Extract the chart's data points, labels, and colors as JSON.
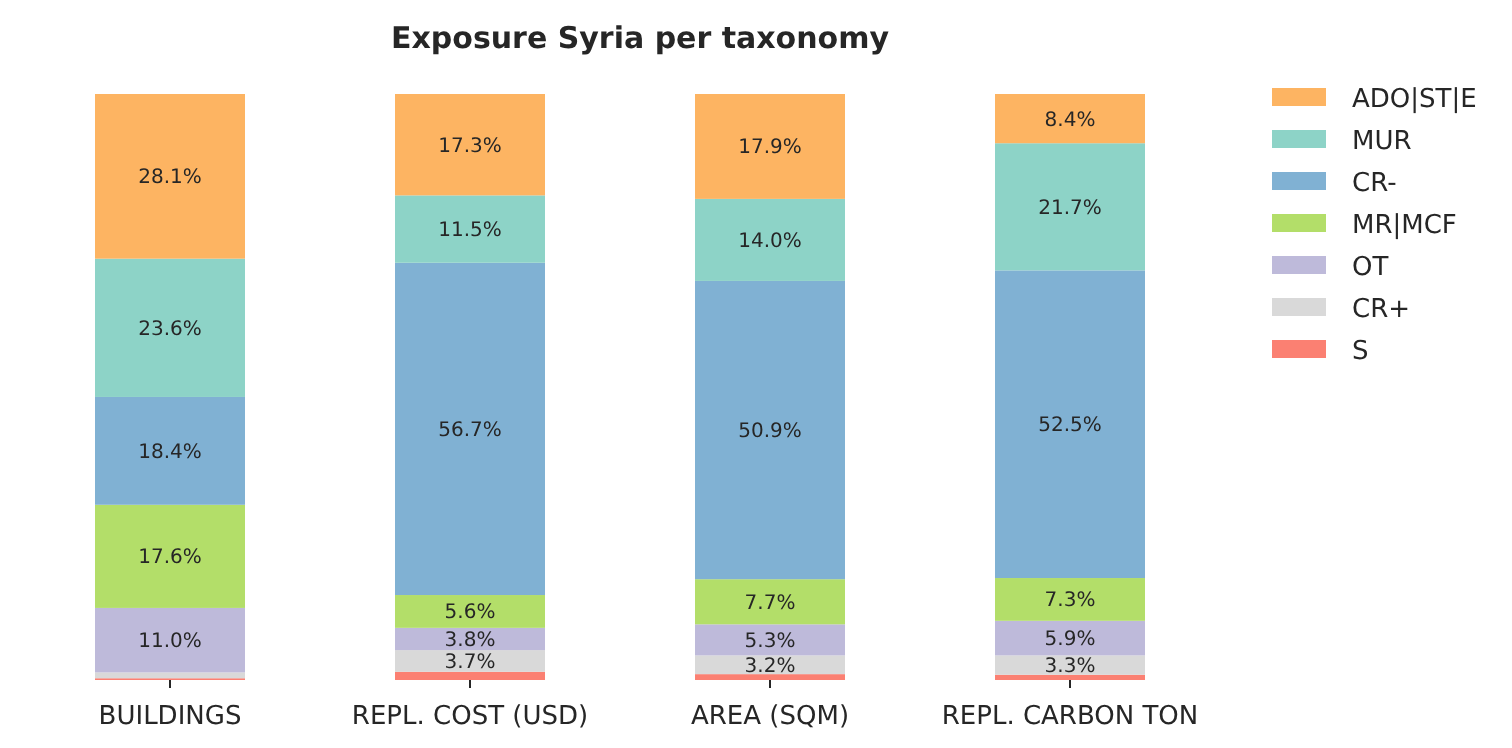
{
  "chart_data": {
    "type": "bar",
    "title": "Exposure Syria per taxonomy",
    "categories": [
      "BUILDINGS",
      "REPL. COST (USD)",
      "AREA (SQM)",
      "REPL. CARBON TON"
    ],
    "stacked": true,
    "legend": "top right",
    "series": [
      {
        "name": "S",
        "color": "#fb8072",
        "values": [
          0.3,
          1.4,
          1.0,
          0.9
        ],
        "value_labels": [
          null,
          null,
          null,
          null
        ]
      },
      {
        "name": "CR+",
        "color": "#d9d9d9",
        "values": [
          1.0,
          3.7,
          3.2,
          3.3
        ],
        "value_labels": [
          null,
          "3.7%",
          "3.2%",
          "3.3%"
        ]
      },
      {
        "name": "OT",
        "color": "#bebada",
        "values": [
          11.0,
          3.8,
          5.3,
          5.9
        ],
        "value_labels": [
          "11.0%",
          "3.8%",
          "5.3%",
          "5.9%"
        ]
      },
      {
        "name": "MR|MCF",
        "color": "#b3de69",
        "values": [
          17.6,
          5.6,
          7.7,
          7.3
        ],
        "value_labels": [
          "17.6%",
          "5.6%",
          "7.7%",
          "7.3%"
        ]
      },
      {
        "name": "CR-",
        "color": "#80b1d3",
        "values": [
          18.4,
          56.7,
          50.9,
          52.5
        ],
        "value_labels": [
          "18.4%",
          "56.7%",
          "50.9%",
          "52.5%"
        ]
      },
      {
        "name": "MUR",
        "color": "#8dd3c7",
        "values": [
          23.6,
          11.5,
          14.0,
          21.7
        ],
        "value_labels": [
          "23.6%",
          "11.5%",
          "14.0%",
          "21.7%"
        ]
      },
      {
        "name": "ADO|ST|E",
        "color": "#fdb462",
        "values": [
          28.1,
          17.3,
          17.9,
          8.4
        ],
        "value_labels": [
          "28.1%",
          "17.3%",
          "17.9%",
          "8.4%"
        ]
      }
    ]
  }
}
